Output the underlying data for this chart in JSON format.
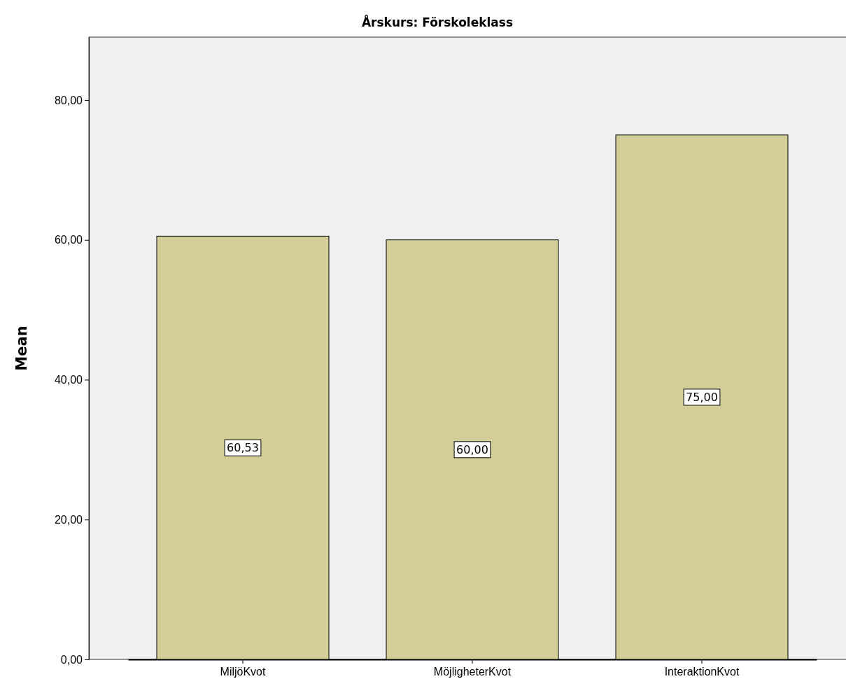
{
  "chart_data": {
    "type": "bar",
    "title": "Årskurs: Förskoleklass",
    "ylabel": "Mean",
    "categories": [
      "MiljöKvot",
      "MöjligheterKvot",
      "InteraktionKvot"
    ],
    "values": [
      60.53,
      60.0,
      75.0
    ],
    "value_labels": [
      "60,53",
      "60,00",
      "75,00"
    ],
    "color": "#d3cd98",
    "ylim": [
      0,
      89
    ],
    "yticks": [
      {
        "value": 0,
        "label": "0,00"
      },
      {
        "value": 20,
        "label": "20,00"
      },
      {
        "value": 40,
        "label": "40,00"
      },
      {
        "value": 60,
        "label": "60,00"
      },
      {
        "value": 80,
        "label": "80,00"
      }
    ],
    "grid": false
  }
}
